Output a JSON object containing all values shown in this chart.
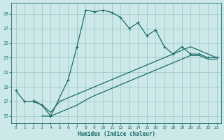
{
  "xlabel": "Humidex (Indice chaleur)",
  "bg_color": "#cde8e8",
  "grid_color": "#a0c8c8",
  "line_color": "#1a6b6b",
  "xlim": [
    -0.5,
    23.5
  ],
  "ylim": [
    14.0,
    30.5
  ],
  "xticks": [
    0,
    1,
    2,
    3,
    4,
    5,
    6,
    7,
    8,
    9,
    10,
    11,
    12,
    13,
    14,
    15,
    16,
    17,
    18,
    19,
    20,
    21,
    22,
    23
  ],
  "yticks": [
    15,
    17,
    19,
    21,
    23,
    25,
    27,
    29
  ],
  "line1_x": [
    0,
    1,
    2,
    3,
    4,
    6,
    7,
    8,
    9,
    10,
    11,
    12,
    13,
    14,
    15,
    16,
    17,
    18,
    19,
    20,
    21,
    22,
    23
  ],
  "line1_y": [
    18.5,
    17.0,
    17.0,
    16.5,
    15.0,
    20.0,
    24.5,
    29.5,
    29.3,
    29.5,
    29.2,
    28.5,
    27.0,
    27.8,
    26.0,
    26.8,
    24.5,
    23.5,
    24.5,
    23.5,
    23.5,
    23.0,
    23.0
  ],
  "line2_x": [
    2,
    3,
    4,
    5,
    6,
    7,
    8,
    9,
    10,
    11,
    12,
    13,
    14,
    15,
    16,
    17,
    18,
    19,
    20,
    21,
    22,
    23
  ],
  "line2_y": [
    17.2,
    16.5,
    15.5,
    17.0,
    17.5,
    18.0,
    18.5,
    19.0,
    19.5,
    20.0,
    20.5,
    21.0,
    21.5,
    22.0,
    22.5,
    23.0,
    23.5,
    24.0,
    24.5,
    24.0,
    23.5,
    23.0
  ],
  "line3_x": [
    3,
    4,
    5,
    6,
    7,
    8,
    9,
    10,
    11,
    12,
    13,
    14,
    15,
    16,
    17,
    18,
    19,
    20,
    21,
    22,
    23
  ],
  "line3_y": [
    15.0,
    15.0,
    15.5,
    16.0,
    16.5,
    17.2,
    17.8,
    18.3,
    18.8,
    19.3,
    19.8,
    20.3,
    20.8,
    21.3,
    21.8,
    22.3,
    22.8,
    23.3,
    23.3,
    22.8,
    22.8
  ]
}
